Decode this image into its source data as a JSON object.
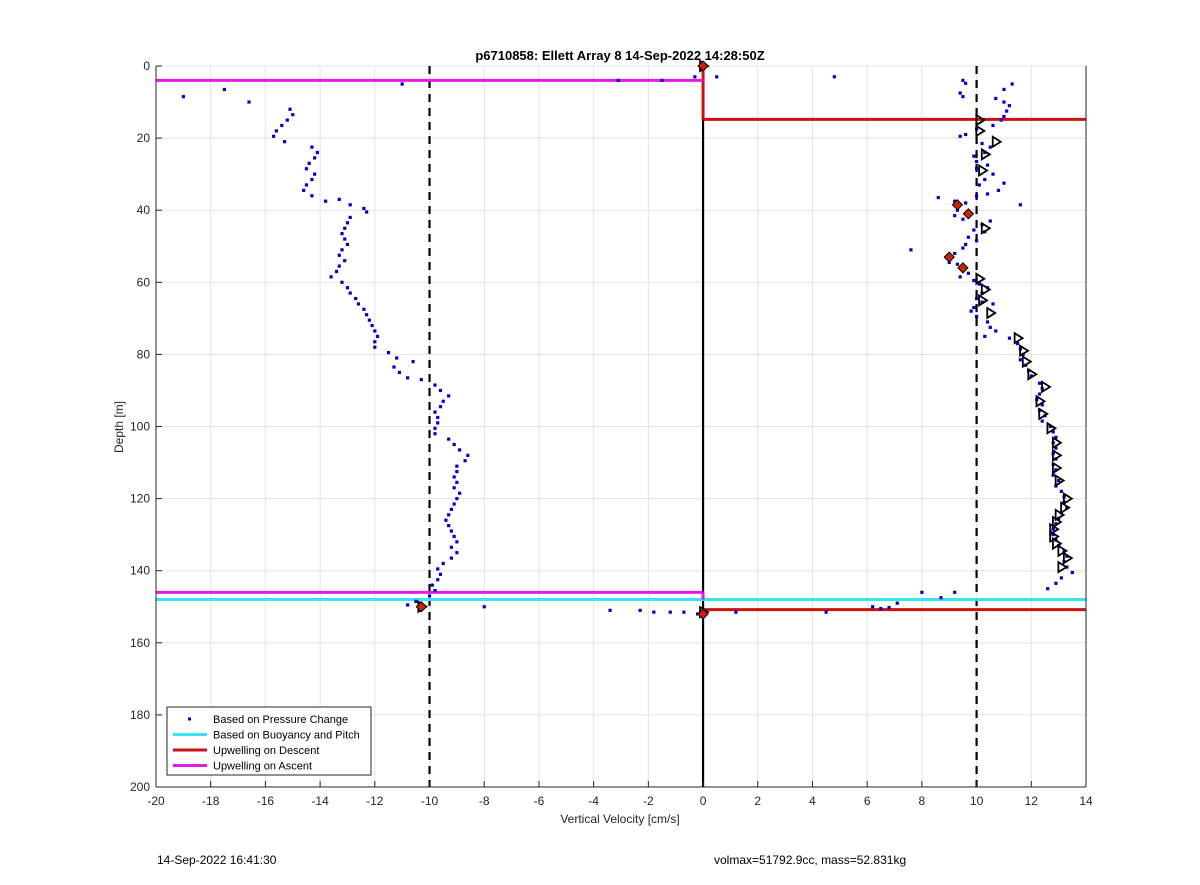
{
  "chart_data": {
    "type": "scatter",
    "title": "p6710858: Ellett Array 8 14-Sep-2022 14:28:50Z",
    "xlabel": "Vertical Velocity [cm/s]",
    "ylabel": "Depth [m]",
    "xlim": [
      -20,
      14
    ],
    "ylim": [
      0,
      200
    ],
    "y_reversed": true,
    "grid": true,
    "x_ticks": [
      "-20",
      "-18",
      "-16",
      "-14",
      "-12",
      "-10",
      "-8",
      "-6",
      "-4",
      "-2",
      "0",
      "2",
      "4",
      "6",
      "8",
      "10",
      "12",
      "14"
    ],
    "y_ticks": [
      "0",
      "20",
      "40",
      "60",
      "80",
      "100",
      "120",
      "140",
      "160",
      "180",
      "200"
    ],
    "legend_position": "bottom-left",
    "legend": [
      {
        "label": "Based on Pressure Change",
        "style": "dot",
        "color": "#0000cc"
      },
      {
        "label": "Based on Buoyancy and Pitch",
        "style": "line",
        "color": "#33e6f0"
      },
      {
        "label": "Upwelling on Descent",
        "style": "line",
        "color": "#cc1111"
      },
      {
        "label": "Upwelling on Ascent",
        "style": "line",
        "color": "#e61ae6"
      }
    ],
    "reference_lines": [
      {
        "x": -10,
        "style": "dashed",
        "color": "#000000"
      },
      {
        "x": 10,
        "style": "dashed",
        "color": "#000000"
      },
      {
        "x": 0,
        "style": "solid",
        "color": "#000000"
      }
    ],
    "series": [
      {
        "name": "Based on Pressure Change",
        "color": "#0000cc",
        "points": [
          [
            -19,
            8.5
          ],
          [
            -17.5,
            6.5
          ],
          [
            -16.6,
            10
          ],
          [
            -11,
            5
          ],
          [
            -3.1,
            4
          ],
          [
            -1.5,
            4
          ],
          [
            -0.3,
            3
          ],
          [
            0.5,
            3
          ],
          [
            4.8,
            3
          ],
          [
            -15.1,
            12
          ],
          [
            -15.0,
            13.5
          ],
          [
            -15.2,
            15
          ],
          [
            -15.4,
            16.5
          ],
          [
            -15.6,
            18
          ],
          [
            -15.7,
            19.5
          ],
          [
            -15.3,
            21
          ],
          [
            -14.3,
            22.5
          ],
          [
            -14.1,
            24
          ],
          [
            -14.2,
            25.5
          ],
          [
            -14.4,
            27
          ],
          [
            -14.5,
            28.5
          ],
          [
            -14.2,
            30
          ],
          [
            -14.3,
            31.5
          ],
          [
            -14.5,
            33
          ],
          [
            -14.6,
            34.5
          ],
          [
            -14.3,
            36
          ],
          [
            -13.8,
            37.5
          ],
          [
            -13.3,
            37
          ],
          [
            -12.9,
            38.5
          ],
          [
            -12.4,
            39.5
          ],
          [
            -12.3,
            40.5
          ],
          [
            -12.9,
            42
          ],
          [
            -13.0,
            43.5
          ],
          [
            -13.1,
            45
          ],
          [
            -13.2,
            46.5
          ],
          [
            -13.1,
            48
          ],
          [
            -13.0,
            49.5
          ],
          [
            -13.2,
            51
          ],
          [
            -13.3,
            52.5
          ],
          [
            -13.1,
            54
          ],
          [
            -13.3,
            55.5
          ],
          [
            -13.4,
            57
          ],
          [
            -13.6,
            58.5
          ],
          [
            -13.2,
            60
          ],
          [
            -13.0,
            61.5
          ],
          [
            -12.9,
            63
          ],
          [
            -12.7,
            64.5
          ],
          [
            -12.6,
            66
          ],
          [
            -12.4,
            67.5
          ],
          [
            -12.3,
            69
          ],
          [
            -12.2,
            70.5
          ],
          [
            -12.1,
            72
          ],
          [
            -12.0,
            73.5
          ],
          [
            -11.9,
            75
          ],
          [
            -12.0,
            76.5
          ],
          [
            -12.0,
            78
          ],
          [
            -11.5,
            79.5
          ],
          [
            -11.2,
            81
          ],
          [
            -10.6,
            82
          ],
          [
            -11.3,
            83.5
          ],
          [
            -11.1,
            85
          ],
          [
            -10.8,
            86.5
          ],
          [
            -10.3,
            87
          ],
          [
            -9.8,
            88.5
          ],
          [
            -9.6,
            90
          ],
          [
            -9.3,
            91.5
          ],
          [
            -9.5,
            93
          ],
          [
            -9.6,
            94.5
          ],
          [
            -9.8,
            96
          ],
          [
            -9.7,
            97.5
          ],
          [
            -9.7,
            99
          ],
          [
            -9.8,
            100.5
          ],
          [
            -9.8,
            102
          ],
          [
            -9.3,
            103.5
          ],
          [
            -9.1,
            105
          ],
          [
            -8.9,
            106.5
          ],
          [
            -8.6,
            108
          ],
          [
            -8.7,
            109.5
          ],
          [
            -9.0,
            111
          ],
          [
            -9.0,
            112.5
          ],
          [
            -9.1,
            114
          ],
          [
            -9.0,
            115.5
          ],
          [
            -9.1,
            117
          ],
          [
            -8.9,
            118.5
          ],
          [
            -9.0,
            120
          ],
          [
            -9.1,
            121.5
          ],
          [
            -9.2,
            123
          ],
          [
            -9.3,
            124.5
          ],
          [
            -9.4,
            126
          ],
          [
            -9.3,
            127.5
          ],
          [
            -9.2,
            129
          ],
          [
            -9.1,
            130.5
          ],
          [
            -9.0,
            132
          ],
          [
            -9.2,
            133.5
          ],
          [
            -9.0,
            135
          ],
          [
            -9.2,
            136.5
          ],
          [
            -9.5,
            138
          ],
          [
            -9.7,
            139.5
          ],
          [
            -9.6,
            141
          ],
          [
            -9.7,
            142.5
          ],
          [
            -9.9,
            144
          ],
          [
            -9.8,
            145.5
          ],
          [
            -10.0,
            147
          ],
          [
            -10.5,
            148.5
          ],
          [
            -10.8,
            149.5
          ],
          [
            -8.0,
            150
          ],
          [
            -3.4,
            151
          ],
          [
            -2.3,
            151
          ],
          [
            -1.8,
            151.5
          ],
          [
            -1.2,
            151.5
          ],
          [
            -0.7,
            151.5
          ],
          [
            -0.2,
            152
          ],
          [
            1.2,
            151.5
          ],
          [
            4.5,
            151.5
          ],
          [
            6.2,
            150
          ],
          [
            6.5,
            150.5
          ],
          [
            6.8,
            150.2
          ],
          [
            7.1,
            149
          ],
          [
            8.0,
            146
          ],
          [
            8.7,
            147.5
          ],
          [
            9.2,
            146
          ],
          [
            9.5,
            4
          ],
          [
            9.6,
            4.8
          ],
          [
            9.4,
            7.5
          ],
          [
            9.5,
            8.5
          ],
          [
            11.3,
            5
          ],
          [
            11.0,
            6.5
          ],
          [
            10.7,
            9
          ],
          [
            11.0,
            10
          ],
          [
            11.2,
            11
          ],
          [
            11.1,
            12.5
          ],
          [
            11.0,
            14
          ],
          [
            10.9,
            15
          ],
          [
            10.6,
            16.5
          ],
          [
            10.0,
            17.5
          ],
          [
            9.6,
            19
          ],
          [
            9.4,
            19.5
          ],
          [
            10.2,
            21.5
          ],
          [
            10.5,
            22.5
          ],
          [
            10.3,
            24
          ],
          [
            9.9,
            25
          ],
          [
            10.0,
            26.5
          ],
          [
            10.4,
            27.5
          ],
          [
            10.0,
            28.5
          ],
          [
            10.6,
            30
          ],
          [
            10.3,
            31.5
          ],
          [
            10.1,
            33
          ],
          [
            11.0,
            32.5
          ],
          [
            10.8,
            34.5
          ],
          [
            10.4,
            35.5
          ],
          [
            10.0,
            36
          ],
          [
            8.6,
            36.5
          ],
          [
            9.2,
            37.5
          ],
          [
            9.6,
            38
          ],
          [
            11.6,
            38.5
          ],
          [
            9.3,
            40
          ],
          [
            9.2,
            41.5
          ],
          [
            9.6,
            41
          ],
          [
            9.5,
            42.5
          ],
          [
            10.5,
            43
          ],
          [
            10.2,
            44
          ],
          [
            9.9,
            45.5
          ],
          [
            10.3,
            46
          ],
          [
            9.7,
            47.5
          ],
          [
            10.0,
            48.5
          ],
          [
            9.6,
            49.5
          ],
          [
            9.5,
            50.5
          ],
          [
            7.6,
            51
          ],
          [
            9.2,
            52
          ],
          [
            8.9,
            53
          ],
          [
            9.0,
            54.5
          ],
          [
            9.3,
            55
          ],
          [
            9.5,
            56.5
          ],
          [
            9.7,
            57.5
          ],
          [
            9.4,
            58.5
          ],
          [
            9.9,
            59.5
          ],
          [
            10.1,
            60.5
          ],
          [
            10.4,
            61.5
          ],
          [
            10.2,
            63
          ],
          [
            10.0,
            64.5
          ],
          [
            10.2,
            65.5
          ],
          [
            10.6,
            66
          ],
          [
            9.9,
            67
          ],
          [
            9.8,
            68
          ],
          [
            10.0,
            69.5
          ],
          [
            10.4,
            71
          ],
          [
            10.5,
            72.5
          ],
          [
            10.7,
            73.5
          ],
          [
            10.3,
            75
          ],
          [
            11.2,
            75.5
          ],
          [
            11.5,
            77
          ],
          [
            11.6,
            78.5
          ],
          [
            11.7,
            80
          ],
          [
            11.6,
            81.5
          ],
          [
            11.8,
            83
          ],
          [
            11.9,
            84.5
          ],
          [
            12.0,
            86
          ],
          [
            12.3,
            88
          ],
          [
            12.4,
            89.5
          ],
          [
            12.3,
            91
          ],
          [
            12.2,
            92.5
          ],
          [
            12.4,
            94
          ],
          [
            12.3,
            95.5
          ],
          [
            12.5,
            97
          ],
          [
            12.4,
            98.5
          ],
          [
            12.7,
            100
          ],
          [
            12.8,
            101.5
          ],
          [
            12.9,
            103
          ],
          [
            12.8,
            104.5
          ],
          [
            12.9,
            106
          ],
          [
            12.8,
            107.5
          ],
          [
            12.9,
            109
          ],
          [
            12.8,
            110.5
          ],
          [
            12.9,
            112
          ],
          [
            12.8,
            113.5
          ],
          [
            13.0,
            115
          ],
          [
            12.9,
            116.5
          ],
          [
            13.1,
            118
          ],
          [
            13.2,
            119.5
          ],
          [
            13.2,
            121
          ],
          [
            13.3,
            122.5
          ],
          [
            13.1,
            124
          ],
          [
            13.0,
            125.5
          ],
          [
            12.9,
            127
          ],
          [
            12.8,
            128.5
          ],
          [
            12.8,
            130
          ],
          [
            12.9,
            131.5
          ],
          [
            13.0,
            133
          ],
          [
            13.2,
            134.5
          ],
          [
            13.3,
            136
          ],
          [
            13.2,
            137.5
          ],
          [
            13.3,
            139
          ],
          [
            13.5,
            140.5
          ],
          [
            13.1,
            142
          ],
          [
            12.9,
            143.5
          ],
          [
            12.6,
            145
          ]
        ]
      },
      {
        "name": "Based on Buoyancy and Pitch",
        "color": "#33e6f0",
        "segments": [
          {
            "x": [
              -20,
              0
            ],
            "y": 148
          },
          {
            "x": [
              0,
              14
            ],
            "y": 148
          }
        ]
      },
      {
        "name": "Upwelling on Descent",
        "color": "#cc1111",
        "segments": [
          {
            "x": [
              0,
              14
            ],
            "y": 14.8
          },
          {
            "x": [
              0,
              14
            ],
            "y": 150.8
          },
          {
            "x": [
              0,
              0
            ],
            "y_range": [
              0,
              14.8
            ]
          }
        ]
      },
      {
        "name": "Upwelling on Ascent",
        "color": "#e61ae6",
        "segments": [
          {
            "x": [
              -20,
              0
            ],
            "y": 4
          },
          {
            "x": [
              -20,
              0
            ],
            "y": 146
          },
          {
            "x": [
              0,
              0
            ],
            "y_range": [
              146,
              148
            ]
          }
        ]
      },
      {
        "name": "Triangle Markers",
        "color": "#000000",
        "points": [
          [
            0,
            0
          ],
          [
            10.1,
            15
          ],
          [
            10.1,
            18
          ],
          [
            10.7,
            21
          ],
          [
            10.3,
            24.5
          ],
          [
            10.2,
            29
          ],
          [
            10.3,
            45
          ],
          [
            10.1,
            59
          ],
          [
            10.3,
            62
          ],
          [
            10.2,
            65
          ],
          [
            10.5,
            68.5
          ],
          [
            11.5,
            75.5
          ],
          [
            11.7,
            79
          ],
          [
            11.8,
            82
          ],
          [
            12.0,
            85.5
          ],
          [
            12.5,
            89
          ],
          [
            12.3,
            93
          ],
          [
            12.4,
            96.5
          ],
          [
            12.7,
            100.5
          ],
          [
            12.9,
            104.5
          ],
          [
            12.9,
            108
          ],
          [
            12.9,
            111.5
          ],
          [
            13.0,
            115
          ],
          [
            13.3,
            120
          ],
          [
            13.2,
            122.5
          ],
          [
            13.0,
            124.5
          ],
          [
            12.9,
            126.5
          ],
          [
            12.8,
            128.5
          ],
          [
            12.8,
            130.5
          ],
          [
            12.9,
            132.5
          ],
          [
            13.1,
            134.5
          ],
          [
            13.3,
            136.5
          ],
          [
            13.1,
            139
          ],
          [
            -10.3,
            150
          ],
          [
            0,
            151.5
          ]
        ]
      },
      {
        "name": "Red Diamond Markers",
        "color": "#cc2200",
        "points": [
          [
            9.3,
            38.5
          ],
          [
            9.7,
            41
          ],
          [
            9.0,
            53
          ],
          [
            9.5,
            56
          ],
          [
            0,
            0
          ],
          [
            -10.3,
            150
          ],
          [
            0,
            152
          ]
        ]
      }
    ]
  },
  "footer": {
    "left": "14-Sep-2022 16:41:30",
    "right": "volmax=51792.9cc, mass=52.831kg"
  }
}
